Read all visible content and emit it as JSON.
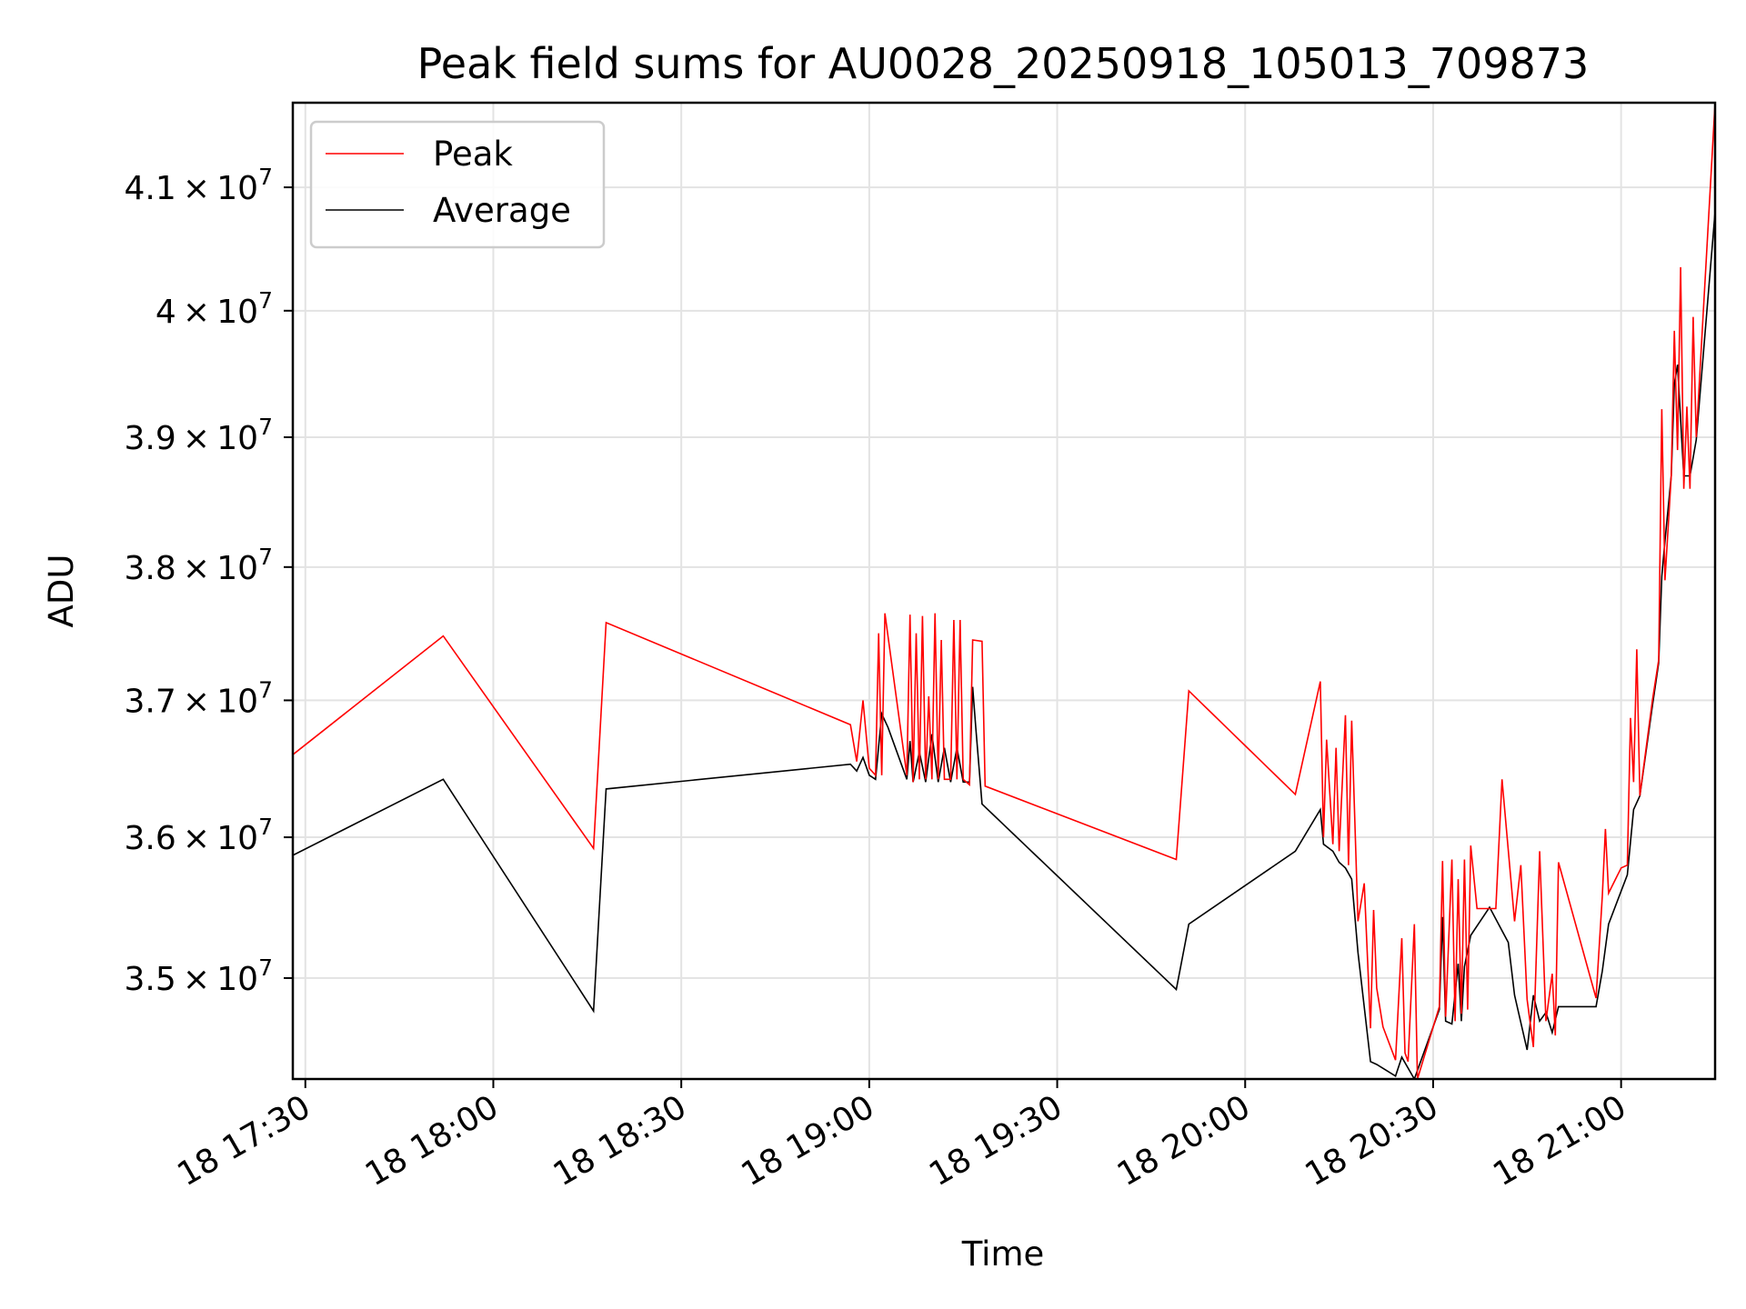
{
  "chart_data": {
    "type": "line",
    "title": "Peak field sums for AU0028_20250918_105013_709873",
    "xlabel": "Time",
    "ylabel": "ADU",
    "y_scale": "log",
    "grid": true,
    "legend_position": "upper left",
    "x_tick_labels": [
      "18 17:30",
      "18 18:00",
      "18 18:30",
      "18 19:00",
      "18 19:30",
      "18 20:00",
      "18 20:30",
      "18 21:00"
    ],
    "x_ticks": [
      "2025-09-18T17:30",
      "2025-09-18T18:00",
      "2025-09-18T18:30",
      "2025-09-18T19:00",
      "2025-09-18T19:30",
      "2025-09-18T20:00",
      "2025-09-18T20:30",
      "2025-09-18T21:00"
    ],
    "y_ticks": [
      {
        "value": 35000000,
        "mantissa": "3.5",
        "exp": "7"
      },
      {
        "value": 36000000,
        "mantissa": "3.6",
        "exp": "7"
      },
      {
        "value": 37000000,
        "mantissa": "3.7",
        "exp": "7"
      },
      {
        "value": 38000000,
        "mantissa": "3.8",
        "exp": "7"
      },
      {
        "value": 39000000,
        "mantissa": "3.9",
        "exp": "7"
      },
      {
        "value": 40000000,
        "mantissa": "4",
        "exp": "7"
      },
      {
        "value": 41000000,
        "mantissa": "4.1",
        "exp": "7"
      }
    ],
    "xlim": [
      "2025-09-18T17:28",
      "2025-09-18T21:15"
    ],
    "ylim": [
      34300000,
      41700000
    ],
    "series": [
      {
        "name": "Peak",
        "color": "#ff0000",
        "points": [
          [
            "2025-09-18T17:28",
            36600000
          ],
          [
            "2025-09-18T17:52",
            37480000
          ],
          [
            "2025-09-18T18:16",
            35920000
          ],
          [
            "2025-09-18T18:18",
            37580000
          ],
          [
            "2025-09-18T18:57",
            36820000
          ],
          [
            "2025-09-18T18:58",
            36550000
          ],
          [
            "2025-09-18T18:59",
            37000000
          ],
          [
            "2025-09-18T19:00",
            36500000
          ],
          [
            "2025-09-18T19:01",
            36450000
          ],
          [
            "2025-09-18T19:01:30",
            37500000
          ],
          [
            "2025-09-18T19:02",
            36450000
          ],
          [
            "2025-09-18T19:02:30",
            37650000
          ],
          [
            "2025-09-18T19:06",
            36450000
          ],
          [
            "2025-09-18T19:06:30",
            37640000
          ],
          [
            "2025-09-18T19:07",
            36400000
          ],
          [
            "2025-09-18T19:07:30",
            37500000
          ],
          [
            "2025-09-18T19:08",
            36420000
          ],
          [
            "2025-09-18T19:08:30",
            37630000
          ],
          [
            "2025-09-18T19:09",
            36420000
          ],
          [
            "2025-09-18T19:09:30",
            37030000
          ],
          [
            "2025-09-18T19:10",
            36420000
          ],
          [
            "2025-09-18T19:10:30",
            37650000
          ],
          [
            "2025-09-18T19:11",
            36420000
          ],
          [
            "2025-09-18T19:11:30",
            37450000
          ],
          [
            "2025-09-18T19:12",
            36420000
          ],
          [
            "2025-09-18T19:13",
            36420000
          ],
          [
            "2025-09-18T19:13:30",
            37600000
          ],
          [
            "2025-09-18T19:14",
            36420000
          ],
          [
            "2025-09-18T19:14:30",
            37600000
          ],
          [
            "2025-09-18T19:15",
            36420000
          ],
          [
            "2025-09-18T19:16",
            36380000
          ],
          [
            "2025-09-18T19:16:30",
            37450000
          ],
          [
            "2025-09-18T19:18",
            37440000
          ],
          [
            "2025-09-18T19:18:30",
            36370000
          ],
          [
            "2025-09-18T19:49",
            35840000
          ],
          [
            "2025-09-18T19:51",
            37070000
          ],
          [
            "2025-09-18T20:08",
            36310000
          ],
          [
            "2025-09-18T20:12",
            37140000
          ],
          [
            "2025-09-18T20:12:30",
            36000000
          ],
          [
            "2025-09-18T20:13",
            36710000
          ],
          [
            "2025-09-18T20:14",
            35950000
          ],
          [
            "2025-09-18T20:14:30",
            36650000
          ],
          [
            "2025-09-18T20:15",
            35900000
          ],
          [
            "2025-09-18T20:16",
            36890000
          ],
          [
            "2025-09-18T20:16:30",
            35800000
          ],
          [
            "2025-09-18T20:17",
            36850000
          ],
          [
            "2025-09-18T20:18",
            35400000
          ],
          [
            "2025-09-18T20:19",
            35670000
          ],
          [
            "2025-09-18T20:20",
            34650000
          ],
          [
            "2025-09-18T20:20:30",
            35480000
          ],
          [
            "2025-09-18T20:21",
            34930000
          ],
          [
            "2025-09-18T20:22",
            34660000
          ],
          [
            "2025-09-18T20:24",
            34430000
          ],
          [
            "2025-09-18T20:25",
            35280000
          ],
          [
            "2025-09-18T20:25:30",
            34480000
          ],
          [
            "2025-09-18T20:26",
            34420000
          ],
          [
            "2025-09-18T20:27",
            35380000
          ],
          [
            "2025-09-18T20:27:30",
            34300000
          ],
          [
            "2025-09-18T20:31",
            34800000
          ],
          [
            "2025-09-18T20:31:30",
            35830000
          ],
          [
            "2025-09-18T20:32",
            34730000
          ],
          [
            "2025-09-18T20:33",
            35840000
          ],
          [
            "2025-09-18T20:33:30",
            34700000
          ],
          [
            "2025-09-18T20:34",
            35700000
          ],
          [
            "2025-09-18T20:34:30",
            34750000
          ],
          [
            "2025-09-18T20:35",
            35840000
          ],
          [
            "2025-09-18T20:35:30",
            34780000
          ],
          [
            "2025-09-18T20:36",
            35940000
          ],
          [
            "2025-09-18T20:37",
            35490000
          ],
          [
            "2025-09-18T20:40",
            35490000
          ],
          [
            "2025-09-18T20:41",
            36420000
          ],
          [
            "2025-09-18T20:43",
            35400000
          ],
          [
            "2025-09-18T20:44",
            35800000
          ],
          [
            "2025-09-18T20:45",
            34850000
          ],
          [
            "2025-09-18T20:46",
            34520000
          ],
          [
            "2025-09-18T20:47",
            35900000
          ],
          [
            "2025-09-18T20:48",
            34700000
          ],
          [
            "2025-09-18T20:49",
            35030000
          ],
          [
            "2025-09-18T20:49:30",
            34600000
          ],
          [
            "2025-09-18T20:50",
            35820000
          ],
          [
            "2025-09-18T20:56",
            34860000
          ],
          [
            "2025-09-18T20:57",
            35580000
          ],
          [
            "2025-09-18T20:57:30",
            36060000
          ],
          [
            "2025-09-18T20:58",
            35600000
          ],
          [
            "2025-09-18T21:00",
            35780000
          ],
          [
            "2025-09-18T21:01",
            35800000
          ],
          [
            "2025-09-18T21:01:30",
            36870000
          ],
          [
            "2025-09-18T21:02",
            36400000
          ],
          [
            "2025-09-18T21:02:30",
            37380000
          ],
          [
            "2025-09-18T21:03",
            36300000
          ],
          [
            "2025-09-18T21:05",
            37000000
          ],
          [
            "2025-09-18T21:06",
            37300000
          ],
          [
            "2025-09-18T21:06:30",
            39220000
          ],
          [
            "2025-09-18T21:07",
            37900000
          ],
          [
            "2025-09-18T21:08",
            38700000
          ],
          [
            "2025-09-18T21:08:30",
            39840000
          ],
          [
            "2025-09-18T21:09",
            38900000
          ],
          [
            "2025-09-18T21:09:30",
            40350000
          ],
          [
            "2025-09-18T21:10",
            38600000
          ],
          [
            "2025-09-18T21:10:30",
            39240000
          ],
          [
            "2025-09-18T21:11",
            38600000
          ],
          [
            "2025-09-18T21:11:30",
            39950000
          ],
          [
            "2025-09-18T21:12",
            39000000
          ],
          [
            "2025-09-18T21:15",
            41700000
          ]
        ]
      },
      {
        "name": "Average",
        "color": "#000000",
        "points": [
          [
            "2025-09-18T17:28",
            35870000
          ],
          [
            "2025-09-18T17:52",
            36420000
          ],
          [
            "2025-09-18T18:16",
            34770000
          ],
          [
            "2025-09-18T18:18",
            36350000
          ],
          [
            "2025-09-18T18:57",
            36530000
          ],
          [
            "2025-09-18T18:58",
            36480000
          ],
          [
            "2025-09-18T18:59",
            36580000
          ],
          [
            "2025-09-18T19:00",
            36450000
          ],
          [
            "2025-09-18T19:01",
            36420000
          ],
          [
            "2025-09-18T19:02",
            36900000
          ],
          [
            "2025-09-18T19:03",
            36800000
          ],
          [
            "2025-09-18T19:06",
            36420000
          ],
          [
            "2025-09-18T19:06:30",
            36700000
          ],
          [
            "2025-09-18T19:07",
            36400000
          ],
          [
            "2025-09-18T19:08",
            36620000
          ],
          [
            "2025-09-18T19:09",
            36400000
          ],
          [
            "2025-09-18T19:10",
            36750000
          ],
          [
            "2025-09-18T19:11",
            36400000
          ],
          [
            "2025-09-18T19:12",
            36650000
          ],
          [
            "2025-09-18T19:13",
            36400000
          ],
          [
            "2025-09-18T19:14",
            36650000
          ],
          [
            "2025-09-18T19:15",
            36400000
          ],
          [
            "2025-09-18T19:16",
            36400000
          ],
          [
            "2025-09-18T19:16:30",
            37100000
          ],
          [
            "2025-09-18T19:17",
            36800000
          ],
          [
            "2025-09-18T19:18",
            36240000
          ],
          [
            "2025-09-18T19:49",
            34920000
          ],
          [
            "2025-09-18T19:51",
            35380000
          ],
          [
            "2025-09-18T20:08",
            35900000
          ],
          [
            "2025-09-18T20:12",
            36200000
          ],
          [
            "2025-09-18T20:12:30",
            35950000
          ],
          [
            "2025-09-18T20:14",
            35900000
          ],
          [
            "2025-09-18T20:15",
            35820000
          ],
          [
            "2025-09-18T20:16",
            35780000
          ],
          [
            "2025-09-18T20:17",
            35700000
          ],
          [
            "2025-09-18T20:18",
            35180000
          ],
          [
            "2025-09-18T20:20",
            34420000
          ],
          [
            "2025-09-18T20:21",
            34400000
          ],
          [
            "2025-09-18T20:24",
            34320000
          ],
          [
            "2025-09-18T20:25",
            34450000
          ],
          [
            "2025-09-18T20:27",
            34300000
          ],
          [
            "2025-09-18T20:31",
            34780000
          ],
          [
            "2025-09-18T20:31:30",
            35430000
          ],
          [
            "2025-09-18T20:32",
            34700000
          ],
          [
            "2025-09-18T20:33",
            34680000
          ],
          [
            "2025-09-18T20:34",
            35100000
          ],
          [
            "2025-09-18T20:34:30",
            34700000
          ],
          [
            "2025-09-18T20:35",
            35080000
          ],
          [
            "2025-09-18T20:36",
            35300000
          ],
          [
            "2025-09-18T20:39",
            35500000
          ],
          [
            "2025-09-18T20:42",
            35250000
          ],
          [
            "2025-09-18T20:43",
            34880000
          ],
          [
            "2025-09-18T20:45",
            34500000
          ],
          [
            "2025-09-18T20:46",
            34880000
          ],
          [
            "2025-09-18T20:47",
            34700000
          ],
          [
            "2025-09-18T20:48",
            34760000
          ],
          [
            "2025-09-18T20:49",
            34620000
          ],
          [
            "2025-09-18T20:50",
            34800000
          ],
          [
            "2025-09-18T20:56",
            34800000
          ],
          [
            "2025-09-18T20:57",
            35050000
          ],
          [
            "2025-09-18T20:58",
            35380000
          ],
          [
            "2025-09-18T21:01",
            35730000
          ],
          [
            "2025-09-18T21:02",
            36200000
          ],
          [
            "2025-09-18T21:03",
            36300000
          ],
          [
            "2025-09-18T21:05",
            36960000
          ],
          [
            "2025-09-18T21:06",
            37280000
          ],
          [
            "2025-09-18T21:06:30",
            37930000
          ],
          [
            "2025-09-18T21:07",
            38200000
          ],
          [
            "2025-09-18T21:08",
            38700000
          ],
          [
            "2025-09-18T21:08:30",
            39420000
          ],
          [
            "2025-09-18T21:09",
            39570000
          ],
          [
            "2025-09-18T21:10",
            38700000
          ],
          [
            "2025-09-18T21:11",
            38700000
          ],
          [
            "2025-09-18T21:12",
            38980000
          ],
          [
            "2025-09-18T21:15",
            40800000
          ]
        ]
      }
    ]
  }
}
